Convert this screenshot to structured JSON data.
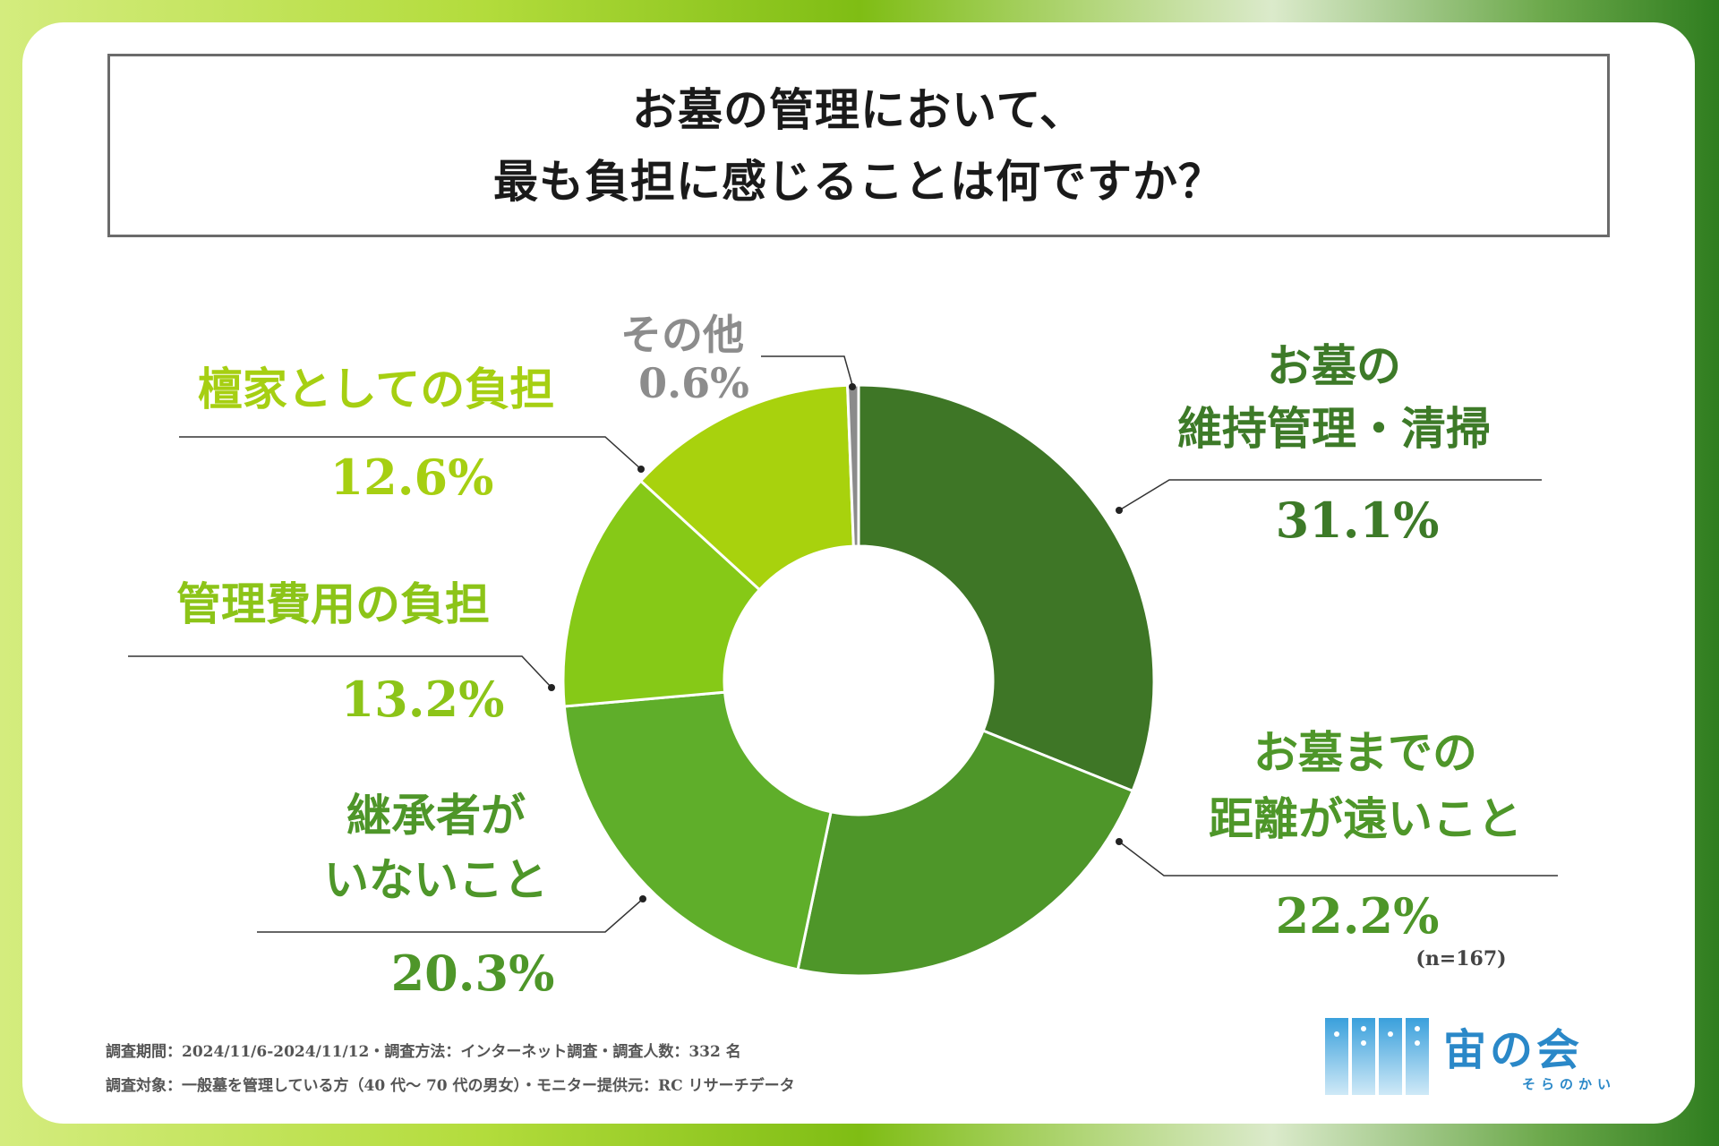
{
  "title": {
    "line1": "お墓の管理において、",
    "line2": "最も負担に感じることは何ですか？"
  },
  "chart_data": {
    "type": "pie",
    "donut": true,
    "title": "お墓の管理において、最も負担に感じることは何ですか？",
    "sample": "(n=167)",
    "slices": [
      {
        "label_lines": [
          "お墓の",
          "維持管理・清掃"
        ],
        "value": 31.1,
        "value_label": "31.1%",
        "color": "#3e7626"
      },
      {
        "label_lines": [
          "お墓までの",
          "距離が遠いこと"
        ],
        "value": 22.2,
        "value_label": "22.2%",
        "color": "#4e9629"
      },
      {
        "label_lines": [
          "継承者が",
          "いないこと"
        ],
        "value": 20.3,
        "value_label": "20.3%",
        "color": "#5fae2a"
      },
      {
        "label_lines": [
          "管理費用の負担"
        ],
        "value": 13.2,
        "value_label": "13.2%",
        "color": "#86c917"
      },
      {
        "label_lines": [
          "檀家としての負担"
        ],
        "value": 12.6,
        "value_label": "12.6%",
        "color": "#a8d20d"
      },
      {
        "label_lines": [
          "その他"
        ],
        "value": 0.6,
        "value_label": "0.6%",
        "color": "#8b8b8b"
      }
    ]
  },
  "footer": {
    "line1": "調査期間：2024/11/6-2024/11/12・調査方法：インターネット調査・調査人数：332 名",
    "line2": "調査対象：一般墓を管理している方（40 代〜 70 代の男女）・モニター提供元：RC リサーチデータ"
  },
  "logo": {
    "name": "宙の会",
    "sub": "そらのかい"
  },
  "colors": {
    "label_dark": "#3d7a28",
    "label_mid": "#4e9629",
    "label_light": "#8cc418",
    "label_lime": "#a6cf12",
    "label_gray": "#8c8c8c",
    "logo_blue": "#2a88c8"
  }
}
